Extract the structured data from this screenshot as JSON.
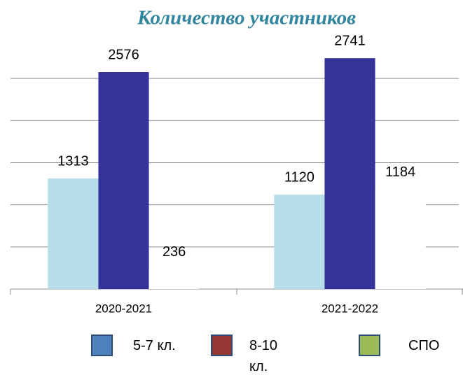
{
  "chart_data": {
    "type": "bar",
    "title": "Количество участников",
    "categories": [
      "2020-2021",
      "2021-2022"
    ],
    "series": [
      {
        "name": "5-7 кл.",
        "color": "#b7dde8",
        "legend_color": "#4f81bd",
        "values": [
          1313,
          1120
        ]
      },
      {
        "name": "8-10 кл.",
        "color": "#333399",
        "legend_color": "#953735",
        "values": [
          2576,
          2741
        ]
      },
      {
        "name": "СПО",
        "color": "#ffffff",
        "legend_color": "#9bbb59",
        "values": [
          236,
          1184
        ]
      }
    ],
    "ylim": [
      0,
      3000
    ],
    "yticks": [
      500,
      1000,
      1500,
      2000,
      2500
    ],
    "grid": true,
    "legend": "bottom"
  }
}
